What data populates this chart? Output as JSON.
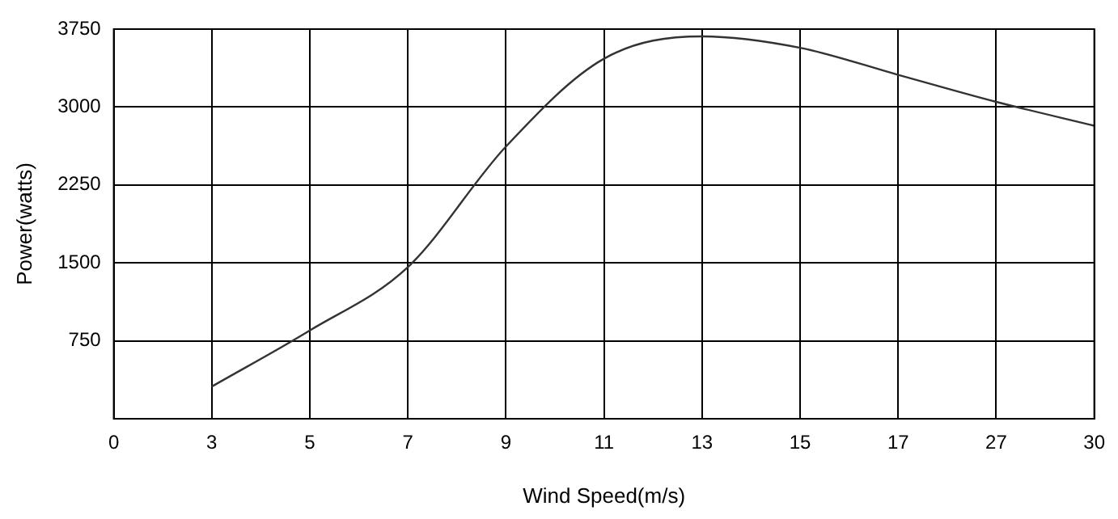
{
  "chart_data": {
    "type": "line",
    "xlabel": "Wind Speed(m/s)",
    "ylabel": "Power(watts)",
    "categories": [
      "0",
      "3",
      "5",
      "7",
      "9",
      "11",
      "13",
      "15",
      "17",
      "27",
      "30"
    ],
    "series": [
      {
        "color": "#333333",
        "values": [
          null,
          310,
          850,
          1460,
          2620,
          3465,
          3680,
          3570,
          3310,
          3050,
          2820
        ]
      }
    ],
    "ylim": [
      0,
      3750
    ],
    "yticks": [
      {
        "value": 0,
        "label": null
      },
      750,
      1500,
      2250,
      3000,
      3750
    ],
    "grid": true,
    "legend": false,
    "marker": "none",
    "line_style": "solid"
  }
}
